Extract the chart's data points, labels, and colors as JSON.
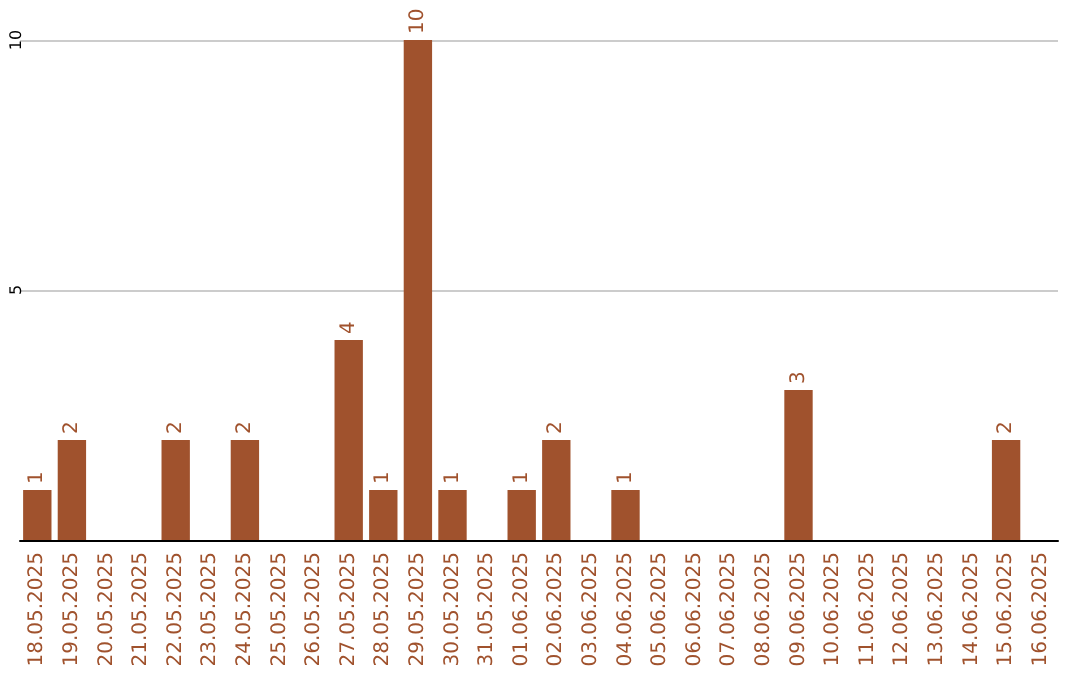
{
  "chart_data": {
    "type": "bar",
    "categories": [
      "18.05.2025",
      "19.05.2025",
      "20.05.2025",
      "21.05.2025",
      "22.05.2025",
      "23.05.2025",
      "24.05.2025",
      "25.05.2025",
      "26.05.2025",
      "27.05.2025",
      "28.05.2025",
      "29.05.2025",
      "30.05.2025",
      "31.05.2025",
      "01.06.2025",
      "02.06.2025",
      "03.06.2025",
      "04.06.2025",
      "05.06.2025",
      "06.06.2025",
      "07.06.2025",
      "08.06.2025",
      "09.06.2025",
      "10.06.2025",
      "11.06.2025",
      "12.06.2025",
      "13.06.2025",
      "14.06.2025",
      "15.06.2025",
      "16.06.2025"
    ],
    "values": [
      1,
      2,
      0,
      0,
      2,
      0,
      2,
      0,
      0,
      4,
      1,
      10,
      1,
      0,
      1,
      2,
      0,
      1,
      0,
      0,
      0,
      0,
      3,
      0,
      0,
      0,
      0,
      0,
      2,
      0
    ],
    "value_labels": [
      "1",
      "2",
      null,
      null,
      "2",
      null,
      "2",
      null,
      null,
      "4",
      "1",
      "10",
      "1",
      null,
      "1",
      "2",
      null,
      "1",
      null,
      null,
      null,
      null,
      "3",
      null,
      null,
      null,
      null,
      null,
      "2",
      null
    ],
    "color": "#a0522d",
    "ylim": [
      0,
      10
    ],
    "yticks": [
      {
        "value": 0,
        "label": null
      },
      5,
      10
    ],
    "grid": "y"
  }
}
